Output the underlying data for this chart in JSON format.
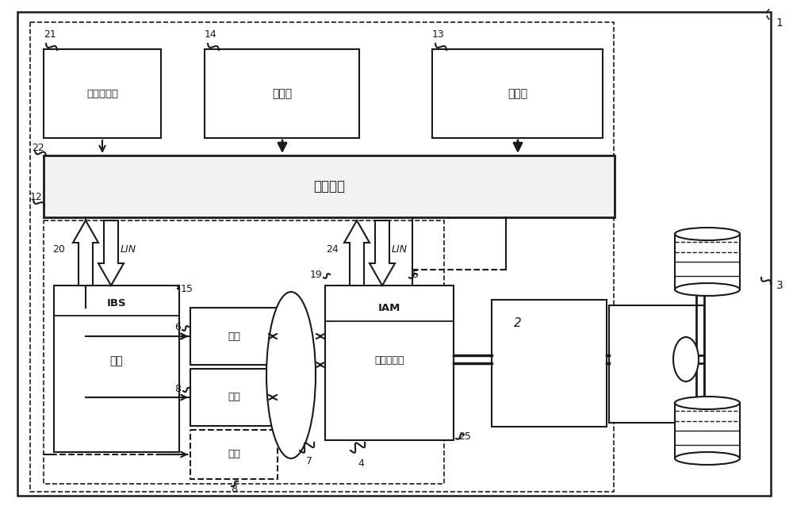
{
  "bg": "#ffffff",
  "lc": "#1a1a1a",
  "figsize": [
    10.0,
    6.38
  ],
  "dpi": 100,
  "texts": {
    "dashboard": "车辆仪表板",
    "memory": "存储器",
    "sensor": "传感器",
    "processing": "处理单元",
    "battery": "电池",
    "load": "负载",
    "alternator": "交流发电机"
  }
}
